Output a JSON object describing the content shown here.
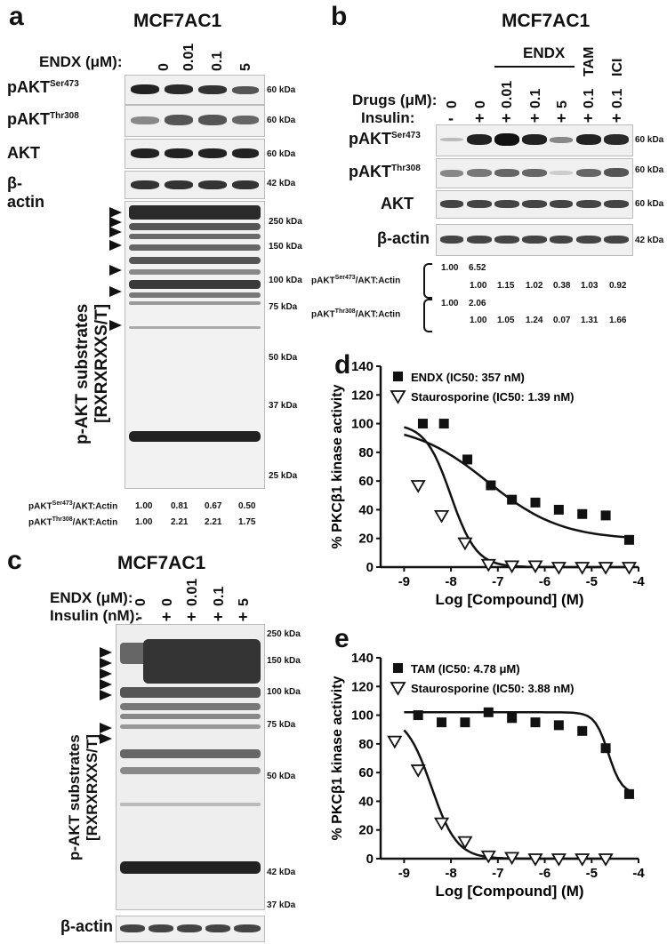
{
  "panel_a": {
    "label": "a",
    "title": "MCF7AC1",
    "row_header": "ENDX (μM):",
    "lanes": [
      "0",
      "0.01",
      "0.1",
      "5"
    ],
    "blots": [
      {
        "name": "pAKT",
        "sup": "Ser473",
        "mw": "60 kDa"
      },
      {
        "name": "pAKT",
        "sup": "Thr308",
        "mw": "60 kDa"
      },
      {
        "name": "AKT",
        "sup": "",
        "mw": "60 kDa"
      },
      {
        "name": "β-actin",
        "sup": "",
        "mw": "42 kDa"
      }
    ],
    "substrate_label_1": "p-AKT substrates",
    "substrate_label_2": "[RXRXRXXS/T]",
    "markers": [
      "250 kDa",
      "150 kDa",
      "100 kDa",
      "75 kDa",
      "50 kDa",
      "37 kDa",
      "25 kDa"
    ],
    "quant": [
      {
        "label_pre": "pAKT",
        "label_sup": "Ser473",
        "label_post": "/AKT:Actin",
        "values": [
          "1.00",
          "0.81",
          "0.67",
          "0.50"
        ]
      },
      {
        "label_pre": "pAKT",
        "label_sup": "Thr308",
        "label_post": "/AKT:Actin",
        "values": [
          "1.00",
          "2.21",
          "2.21",
          "1.75"
        ]
      }
    ]
  },
  "panel_b": {
    "label": "b",
    "title": "MCF7AC1",
    "group_label": "ENDX",
    "drugs_header": "Drugs (μM):",
    "insulin_header": "Insulin:",
    "drug_lanes": [
      "0",
      "0",
      "0.01",
      "0.1",
      "5",
      "0.1",
      "0.1"
    ],
    "top_lanes": [
      "TAM",
      "ICI"
    ],
    "insulin_lanes": [
      "-",
      "+",
      "+",
      "+",
      "+",
      "+",
      "+"
    ],
    "blots": [
      {
        "name": "pAKT",
        "sup": "Ser473",
        "mw": "60 kDa"
      },
      {
        "name": "pAKT",
        "sup": "Thr308",
        "mw": "60 kDa"
      },
      {
        "name": "AKT",
        "sup": "",
        "mw": "60 kDa"
      },
      {
        "name": "β-actin",
        "sup": "",
        "mw": "42 kDa"
      }
    ],
    "quant": [
      {
        "label_pre": "pAKT",
        "label_sup": "Ser473",
        "label_post": "/AKT:Actin",
        "row1": [
          "1.00",
          "6.52"
        ],
        "row2": [
          "1.00",
          "1.15",
          "1.02",
          "0.38",
          "1.03",
          "0.92"
        ]
      },
      {
        "label_pre": "pAKT",
        "label_sup": "Thr308",
        "label_post": "/AKT:Actin",
        "row1": [
          "1.00",
          "2.06"
        ],
        "row2": [
          "1.00",
          "1.05",
          "1.24",
          "0.07",
          "1.31",
          "1.66"
        ]
      }
    ]
  },
  "panel_c": {
    "label": "c",
    "title": "MCF7AC1",
    "row1_header": "ENDX (μM):",
    "row2_header": "Insulin (nM):",
    "lanes": [
      "0",
      "0",
      "0.01",
      "0.1",
      "5"
    ],
    "insulin_lanes": [
      "-",
      "+",
      "+",
      "+",
      "+"
    ],
    "substrate_label_1": "p-AKT substrates",
    "substrate_label_2": "[RXRXRXXS/T]",
    "markers": [
      "250 kDa",
      "150 kDa",
      "100 kDa",
      "75 kDa",
      "50 kDa",
      "42 kDa",
      "37 kDa"
    ],
    "actin_label": "β-actin"
  },
  "chart_data": [
    {
      "panel": "d",
      "type": "scatter",
      "xlabel": "Log [Compound] (M)",
      "ylabel": "% PKCβ1 kinase activity",
      "xlim": [
        -9.5,
        -4
      ],
      "ylim": [
        0,
        140
      ],
      "xticks": [
        -9,
        -8,
        -7,
        -6,
        -5,
        -4
      ],
      "yticks": [
        0,
        20,
        40,
        60,
        80,
        100,
        120,
        140
      ],
      "series": [
        {
          "name": "ENDX (IC50: 357 nM)",
          "marker": "square",
          "x": [
            -8.6,
            -8.15,
            -7.65,
            -7.15,
            -6.7,
            -6.2,
            -5.7,
            -5.2,
            -4.7,
            -4.2
          ],
          "y": [
            100,
            100,
            75,
            57,
            47,
            45,
            40,
            37,
            36,
            19
          ]
        },
        {
          "name": "Staurosporine (IC50: 1.39 nM)",
          "marker": "triangle-down-open",
          "x": [
            -8.7,
            -8.2,
            -7.7,
            -7.2,
            -6.7,
            -6.2,
            -5.7,
            -5.2,
            -4.7,
            -4.2
          ],
          "y": [
            57,
            36,
            17,
            2,
            1,
            1,
            0,
            0,
            0,
            0
          ]
        }
      ]
    },
    {
      "panel": "e",
      "type": "scatter",
      "xlabel": "Log [Compound] (M)",
      "ylabel": "% PKCβ1 kinase activity",
      "xlim": [
        -9.5,
        -4
      ],
      "ylim": [
        0,
        140
      ],
      "xticks": [
        -9,
        -8,
        -7,
        -6,
        -5,
        -4
      ],
      "yticks": [
        0,
        20,
        40,
        60,
        80,
        100,
        120,
        140
      ],
      "series": [
        {
          "name": "TAM (IC50: 4.78 μM)",
          "marker": "square",
          "x": [
            -8.7,
            -8.2,
            -7.7,
            -7.2,
            -6.7,
            -6.2,
            -5.7,
            -5.2,
            -4.7,
            -4.2
          ],
          "y": [
            100,
            95,
            95,
            102,
            98,
            95,
            93,
            89,
            77,
            45
          ]
        },
        {
          "name": "Staurosporine (IC50: 3.88 nM)",
          "marker": "triangle-down-open",
          "x": [
            -9.2,
            -8.7,
            -8.2,
            -7.7,
            -7.2,
            -6.7,
            -6.2,
            -5.7,
            -5.2,
            -4.7
          ],
          "y": [
            82,
            62,
            25,
            12,
            2,
            1,
            0,
            0,
            0,
            0
          ]
        }
      ]
    }
  ]
}
